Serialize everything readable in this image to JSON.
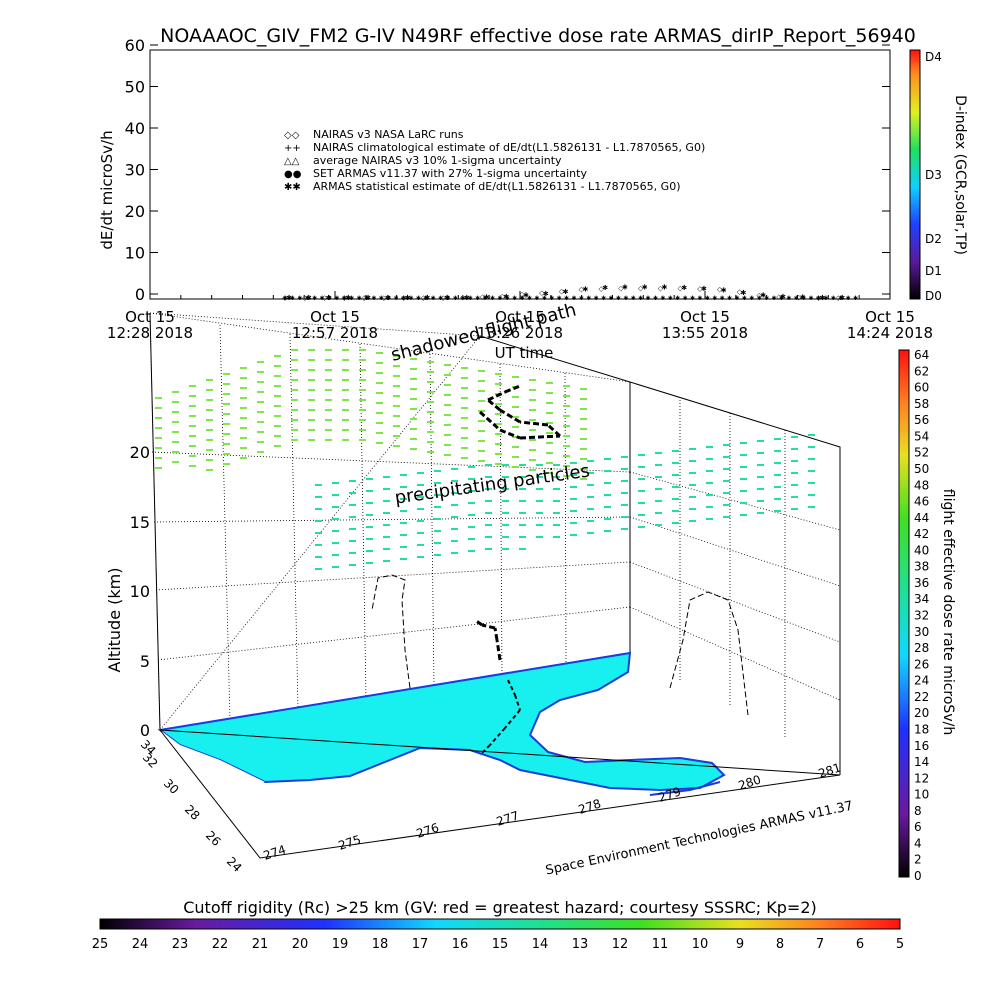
{
  "title": "NOAAAOC_GIV_FM2 G-IV    N49RF   effective dose rate ARMAS_dirIP_Report_56940",
  "top_plot": {
    "ylabel": "dE/dt microSv/h",
    "xlabel": "UT time",
    "y_ticks": [
      "0",
      "10",
      "20",
      "30",
      "40",
      "50",
      "60"
    ],
    "x_ticks": [
      {
        "line1": "Oct 15",
        "line2": "12:28 2018"
      },
      {
        "line1": "Oct 15",
        "line2": "12:57 2018"
      },
      {
        "line1": "Oct 15",
        "line2": "13:26 2018"
      },
      {
        "line1": "Oct 15",
        "line2": "13:55 2018"
      },
      {
        "line1": "Oct 15",
        "line2": "14:24 2018"
      }
    ],
    "legend": [
      {
        "symbol": "◇◇",
        "label": "NAIRAS v3 NASA LaRC runs"
      },
      {
        "symbol": "++",
        "label": "NAIRAS climatological estimate of dE/dt(L1.5826131 - L1.7870565, G0)"
      },
      {
        "symbol": "△△",
        "label": "average NAIRAS v3 10% 1-sigma uncertainty"
      },
      {
        "symbol": "●●",
        "label": "SET ARMAS v11.37 with 27% 1-sigma uncertainty"
      },
      {
        "symbol": "✱✱",
        "label": "ARMAS statistical estimate of dE/dt(L1.5826131 - L1.7870565, G0)"
      }
    ],
    "dindex_label": "D-index (GCR,solar,TP)",
    "dindex_ticks": [
      "D4",
      "D3",
      "D2",
      "D1",
      "D0"
    ]
  },
  "chart_data": [
    {
      "type": "scatter",
      "title": "NOAAAOC_GIV_FM2 G-IV    N49RF   effective dose rate ARMAS_dirIP_Report_56940",
      "xlabel": "UT time",
      "ylabel": "dE/dt microSv/h",
      "ylim": [
        0,
        60
      ],
      "x_tick_labels": [
        "Oct 15 12:28 2018",
        "Oct 15 12:57 2018",
        "Oct 15 13:26 2018",
        "Oct 15 13:55 2018",
        "Oct 15 14:24 2018"
      ],
      "series": [
        {
          "name": "NAIRAS v3 NASA LaRC runs",
          "x_minutes": [
            0,
            4,
            8,
            12,
            16,
            20,
            24,
            28,
            32,
            36,
            40,
            44,
            48,
            52,
            56,
            60,
            64,
            68,
            72,
            76,
            80,
            84,
            88,
            92,
            96,
            100,
            104,
            108,
            112
          ],
          "values": [
            0,
            0,
            0,
            0,
            0,
            0,
            0,
            0,
            0,
            0.1,
            0.2,
            0.4,
            0.8,
            1.2,
            1.6,
            2.0,
            2.2,
            2.3,
            2.3,
            2.3,
            2.3,
            2.2,
            2.0,
            1.4,
            0.6,
            0.3,
            0.1,
            0,
            0
          ]
        },
        {
          "name": "SET ARMAS v11.37 with 27% 1-sigma uncertainty",
          "x_minutes": [
            0,
            4,
            8,
            12,
            16,
            20,
            24,
            28,
            32,
            36,
            40,
            44,
            48,
            52,
            56,
            60,
            64,
            68,
            72,
            76,
            80,
            84,
            88,
            92,
            96,
            100,
            104,
            108,
            112
          ],
          "values": [
            0,
            0,
            0,
            0,
            0,
            0,
            0,
            0,
            0,
            0,
            0.1,
            0.3,
            0.6,
            1.0,
            1.5,
            2.0,
            2.4,
            2.5,
            2.5,
            2.5,
            2.4,
            2.2,
            1.8,
            1.2,
            0.6,
            0.2,
            0.1,
            0,
            0
          ]
        }
      ],
      "grid": false,
      "legend_position": "top-left"
    },
    {
      "type": "scatter",
      "title": "",
      "ylabel": "Altitude (km)",
      "ylim": [
        0,
        20
      ],
      "z_ticks": [
        "0",
        "5",
        "10",
        "15",
        "20"
      ],
      "longitude_ticks": [
        "274",
        "275",
        "276",
        "277",
        "278",
        "279",
        "280",
        "281"
      ],
      "latitude_ticks": [
        "24",
        "26",
        "28",
        "30",
        "32",
        "34"
      ],
      "annotations": [
        "shadowed flight path",
        "precipitating particles"
      ],
      "watermark": "Space Environment Technologies ARMAS v11.37",
      "flight_track": {
        "lon": [
          277.6,
          277.6,
          277.5,
          277.3,
          277.1,
          277.0,
          277.2,
          277.6,
          277.9
        ],
        "lat": [
          28.9,
          29.4,
          29.9,
          30.4,
          30.9,
          31.3,
          31.5,
          31.3,
          31.0
        ],
        "alt_km": [
          0,
          2,
          4,
          6,
          8,
          10,
          12,
          12.5,
          12.5
        ]
      },
      "colorbar_right": {
        "label": "flight effective dose rate microSv/h",
        "ticks": [
          "64",
          "62",
          "60",
          "58",
          "56",
          "54",
          "52",
          "50",
          "48",
          "46",
          "44",
          "42",
          "40",
          "38",
          "36",
          "34",
          "32",
          "30",
          "28",
          "26",
          "24",
          "22",
          "20",
          "18",
          "16",
          "14",
          "12",
          "10",
          "8",
          "6",
          "4",
          "2",
          "0"
        ]
      },
      "colorbar_bottom": {
        "label": "Cutoff rigidity (Rc) >25 km (GV: red = greatest hazard; courtesy SSSRC; Kp=2)",
        "ticks": [
          "25",
          "24",
          "23",
          "22",
          "21",
          "20",
          "19",
          "18",
          "17",
          "16",
          "15",
          "14",
          "13",
          "12",
          "11",
          "10",
          "9",
          "8",
          "7",
          "6",
          "5"
        ]
      }
    }
  ],
  "colors": {
    "land": "#18f0f0",
    "coast": "#1a3cdc",
    "particles_green": "#7ee64a",
    "particles_teal": "#22e09a"
  }
}
